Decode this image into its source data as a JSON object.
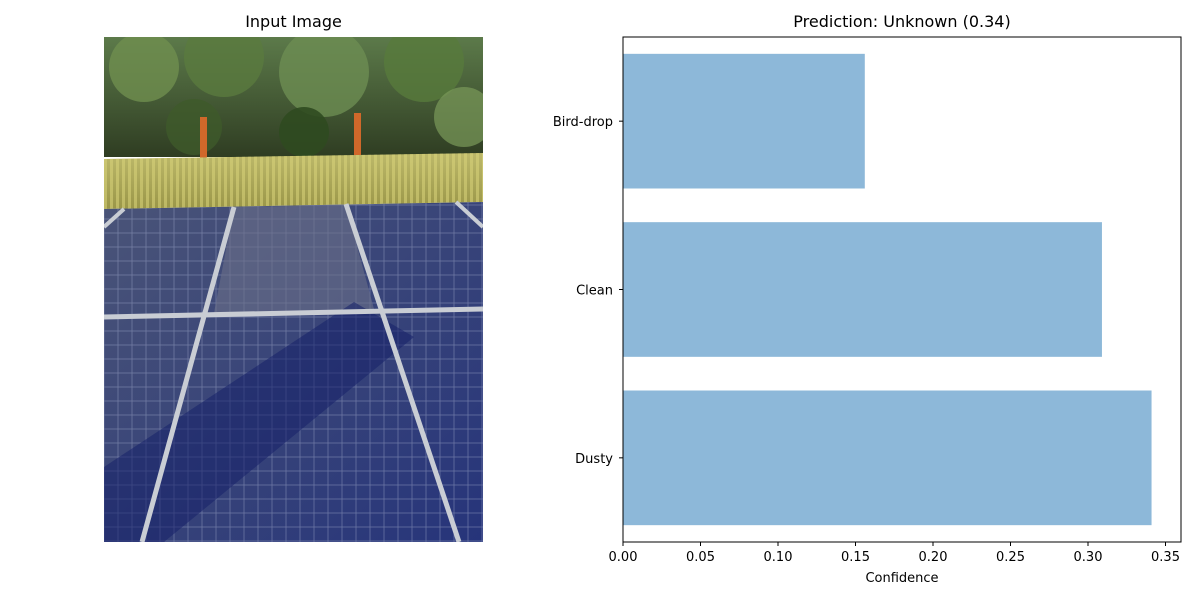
{
  "left_panel": {
    "title": "Input Image",
    "image_description_icon": "solar-panel-photo"
  },
  "chart_data": {
    "type": "bar",
    "orientation": "horizontal",
    "title": "Prediction: Unknown (0.34)",
    "categories": [
      "Dusty",
      "Clean",
      "Bird-drop"
    ],
    "values": [
      0.341,
      0.309,
      0.156
    ],
    "xlabel": "Confidence",
    "ylabel": "",
    "xlim": [
      0.0,
      0.36
    ],
    "xticks": [
      0.0,
      0.05,
      0.1,
      0.15,
      0.2,
      0.25,
      0.3,
      0.35
    ],
    "xtick_labels": [
      "0.00",
      "0.05",
      "0.10",
      "0.15",
      "0.20",
      "0.25",
      "0.30",
      "0.35"
    ],
    "bar_color": "#8db8d9",
    "grid": false
  }
}
